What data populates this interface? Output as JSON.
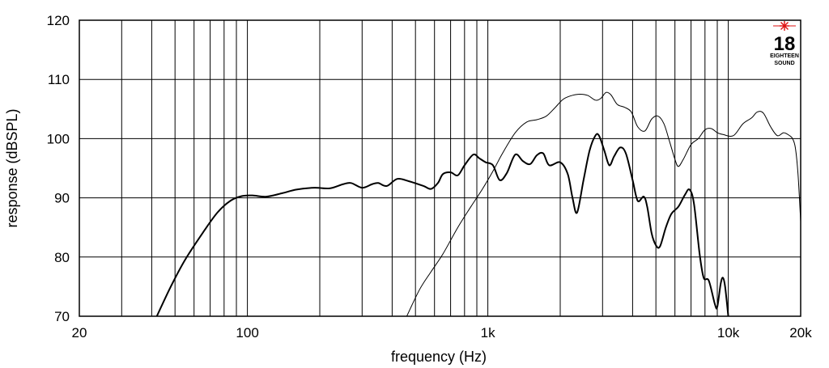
{
  "chart_data": {
    "type": "line",
    "x_scale": "log",
    "xlim": [
      20,
      20000
    ],
    "ylim": [
      70,
      120
    ],
    "grid": true,
    "xlabel": "frequency (Hz)",
    "ylabel": "response (dBSPL)",
    "x_tick_labels": [
      {
        "value": 20,
        "label": "20"
      },
      {
        "value": 100,
        "label": "100"
      },
      {
        "value": 1000,
        "label": "1k"
      },
      {
        "value": 10000,
        "label": "10k"
      },
      {
        "value": 20000,
        "label": "20k"
      }
    ],
    "y_ticks": [
      70,
      80,
      90,
      100,
      110,
      120
    ],
    "series": [
      {
        "color": "#000000",
        "stroke": "thick",
        "points": [
          [
            42,
            70
          ],
          [
            48,
            75
          ],
          [
            55,
            79.5
          ],
          [
            65,
            84
          ],
          [
            75,
            87.5
          ],
          [
            85,
            89.5
          ],
          [
            95,
            90.3
          ],
          [
            105,
            90.4
          ],
          [
            120,
            90.2
          ],
          [
            140,
            90.8
          ],
          [
            160,
            91.4
          ],
          [
            190,
            91.7
          ],
          [
            220,
            91.6
          ],
          [
            250,
            92.3
          ],
          [
            270,
            92.5
          ],
          [
            300,
            91.7
          ],
          [
            330,
            92.3
          ],
          [
            350,
            92.5
          ],
          [
            380,
            92
          ],
          [
            420,
            93.2
          ],
          [
            470,
            92.8
          ],
          [
            540,
            92
          ],
          [
            580,
            91.5
          ],
          [
            620,
            92.5
          ],
          [
            650,
            94
          ],
          [
            700,
            94.3
          ],
          [
            750,
            93.8
          ],
          [
            800,
            95.5
          ],
          [
            870,
            97.3
          ],
          [
            920,
            96.7
          ],
          [
            980,
            96
          ],
          [
            1050,
            95.5
          ],
          [
            1120,
            93
          ],
          [
            1200,
            94.2
          ],
          [
            1300,
            97.3
          ],
          [
            1400,
            96.2
          ],
          [
            1500,
            95.7
          ],
          [
            1600,
            97.2
          ],
          [
            1700,
            97.5
          ],
          [
            1800,
            95.5
          ],
          [
            2000,
            96
          ],
          [
            2150,
            94
          ],
          [
            2250,
            90
          ],
          [
            2350,
            87.5
          ],
          [
            2500,
            93
          ],
          [
            2650,
            98
          ],
          [
            2800,
            100.5
          ],
          [
            2900,
            100.5
          ],
          [
            3050,
            98
          ],
          [
            3200,
            95.5
          ],
          [
            3350,
            97
          ],
          [
            3550,
            98.5
          ],
          [
            3750,
            97.5
          ],
          [
            4000,
            93
          ],
          [
            4200,
            89.5
          ],
          [
            4450,
            90.2
          ],
          [
            4600,
            88.5
          ],
          [
            4800,
            84
          ],
          [
            5000,
            82
          ],
          [
            5200,
            81.8
          ],
          [
            5500,
            85
          ],
          [
            5800,
            87.3
          ],
          [
            6200,
            88.5
          ],
          [
            6600,
            90.5
          ],
          [
            6900,
            91.4
          ],
          [
            7200,
            89
          ],
          [
            7600,
            80.5
          ],
          [
            7900,
            76.5
          ],
          [
            8300,
            76
          ],
          [
            8800,
            72
          ],
          [
            9000,
            71.6
          ],
          [
            9300,
            75.5
          ],
          [
            9500,
            76.5
          ],
          [
            9700,
            75
          ],
          [
            10000,
            70
          ]
        ]
      },
      {
        "color": "#000000",
        "stroke": "thin",
        "points": [
          [
            460,
            70
          ],
          [
            520,
            74.5
          ],
          [
            580,
            77.5
          ],
          [
            650,
            80.5
          ],
          [
            750,
            85
          ],
          [
            850,
            88.5
          ],
          [
            950,
            91.5
          ],
          [
            1050,
            94.5
          ],
          [
            1150,
            97.5
          ],
          [
            1300,
            101
          ],
          [
            1450,
            102.8
          ],
          [
            1600,
            103.2
          ],
          [
            1750,
            103.8
          ],
          [
            1900,
            105.2
          ],
          [
            2050,
            106.6
          ],
          [
            2200,
            107.2
          ],
          [
            2400,
            107.5
          ],
          [
            2600,
            107.3
          ],
          [
            2800,
            106.5
          ],
          [
            2950,
            106.8
          ],
          [
            3100,
            107.8
          ],
          [
            3250,
            107.4
          ],
          [
            3450,
            105.8
          ],
          [
            3700,
            105.3
          ],
          [
            3950,
            104.5
          ],
          [
            4200,
            102
          ],
          [
            4500,
            101.3
          ],
          [
            4800,
            103.3
          ],
          [
            5100,
            103.8
          ],
          [
            5400,
            102.5
          ],
          [
            5700,
            99.5
          ],
          [
            6000,
            96.5
          ],
          [
            6200,
            95.3
          ],
          [
            6500,
            96.5
          ],
          [
            7000,
            99
          ],
          [
            7500,
            100
          ],
          [
            8000,
            101.5
          ],
          [
            8500,
            101.7
          ],
          [
            9000,
            101
          ],
          [
            9500,
            100.7
          ],
          [
            10500,
            100.5
          ],
          [
            11500,
            102.5
          ],
          [
            12500,
            103.5
          ],
          [
            13200,
            104.5
          ],
          [
            14000,
            104.3
          ],
          [
            15000,
            102
          ],
          [
            16000,
            100.5
          ],
          [
            17000,
            101
          ],
          [
            18000,
            100.5
          ],
          [
            18500,
            100
          ],
          [
            19000,
            98.5
          ],
          [
            19500,
            94
          ],
          [
            20000,
            86
          ]
        ]
      }
    ]
  },
  "logo": {
    "number": "18",
    "line1": "EIGHTEEN",
    "line2": "SOUND"
  }
}
